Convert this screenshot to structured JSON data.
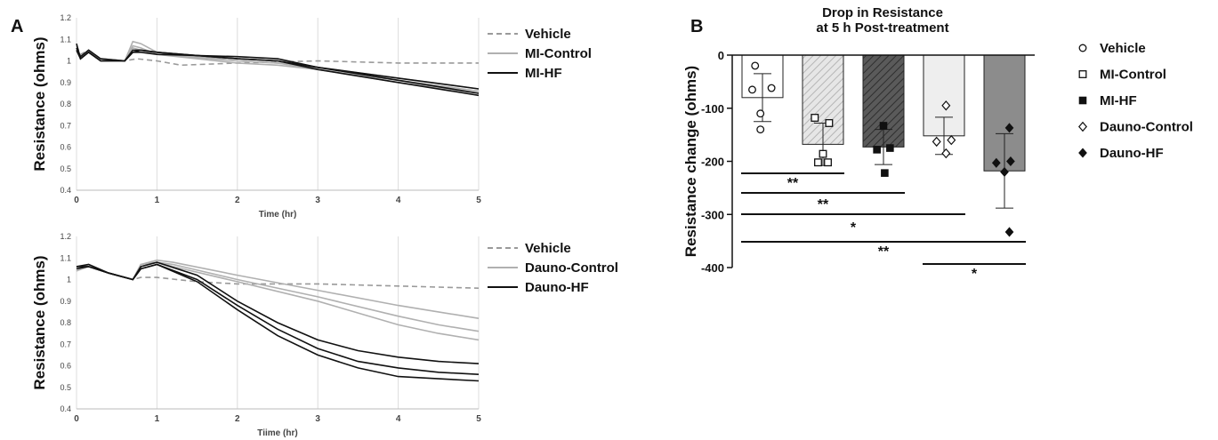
{
  "panels": {
    "a": "A",
    "b": "B"
  },
  "chart_data": [
    {
      "id": "a_top",
      "type": "line",
      "xlabel": "Time (hr)",
      "ylabel": "Resistance (ohms)",
      "xlim": [
        0,
        5
      ],
      "ylim": [
        0.4,
        1.2
      ],
      "xticks": [
        0,
        1,
        2,
        3,
        4,
        5
      ],
      "yticks": [
        0.4,
        0.5,
        0.6,
        0.7,
        0.8,
        0.9,
        1,
        1.1,
        1.2
      ],
      "grid": "vertical",
      "legend": [
        {
          "name": "Vehicle",
          "style": "dashed",
          "color": "#9a9a9a"
        },
        {
          "name": "MI-Control",
          "style": "solid",
          "color": "#b0b0b0"
        },
        {
          "name": "MI-HF",
          "style": "solid",
          "color": "#111111"
        }
      ],
      "series": [
        {
          "group": "Vehicle",
          "color": "#9a9a9a",
          "dashed": true,
          "x": [
            0,
            0.05,
            0.15,
            0.3,
            0.6,
            0.75,
            1.0,
            1.3,
            2.0,
            3.0,
            4.0,
            5.0
          ],
          "y": [
            1.07,
            1.03,
            1.05,
            1.01,
            1.0,
            1.01,
            1.0,
            0.98,
            0.99,
            1.0,
            0.99,
            0.99
          ]
        },
        {
          "group": "MI-Control",
          "color": "#b0b0b0",
          "dashed": false,
          "x": [
            0,
            0.05,
            0.15,
            0.3,
            0.6,
            0.7,
            0.8,
            1.0,
            2.0,
            2.5,
            3.0,
            4.0,
            5.0
          ],
          "y": [
            1.07,
            1.02,
            1.05,
            1.01,
            1.0,
            1.09,
            1.08,
            1.04,
            1.0,
            0.99,
            0.97,
            0.92,
            0.87
          ]
        },
        {
          "group": "MI-Control",
          "color": "#b0b0b0",
          "dashed": false,
          "x": [
            0,
            0.05,
            0.15,
            0.3,
            0.6,
            0.7,
            0.8,
            1.0,
            2.0,
            2.5,
            3.0,
            4.0,
            5.0
          ],
          "y": [
            1.06,
            1.02,
            1.04,
            1.01,
            1.0,
            1.07,
            1.06,
            1.03,
            0.99,
            0.98,
            0.96,
            0.91,
            0.86
          ]
        },
        {
          "group": "MI-Control",
          "color": "#b0b0b0",
          "dashed": false,
          "x": [
            0,
            0.05,
            0.15,
            0.3,
            0.6,
            0.7,
            0.8,
            1.0,
            2.0,
            2.5,
            3.0,
            4.0,
            5.0
          ],
          "y": [
            1.05,
            1.01,
            1.04,
            1.0,
            1.0,
            1.06,
            1.05,
            1.03,
            1.0,
            0.99,
            0.96,
            0.9,
            0.85
          ]
        },
        {
          "group": "MI-HF",
          "color": "#111111",
          "dashed": false,
          "x": [
            0,
            0.05,
            0.15,
            0.3,
            0.6,
            0.7,
            0.8,
            1.0,
            2.0,
            2.5,
            3.0,
            4.0,
            5.0
          ],
          "y": [
            1.08,
            1.01,
            1.04,
            1.0,
            1.0,
            1.04,
            1.05,
            1.04,
            1.01,
            1.0,
            0.96,
            0.9,
            0.84
          ]
        },
        {
          "group": "MI-HF",
          "color": "#111111",
          "dashed": false,
          "x": [
            0,
            0.05,
            0.15,
            0.3,
            0.6,
            0.7,
            0.8,
            1.0,
            2.0,
            2.5,
            3.0,
            4.0,
            5.0
          ],
          "y": [
            1.06,
            1.02,
            1.05,
            1.01,
            1.0,
            1.04,
            1.04,
            1.03,
            1.02,
            1.01,
            0.97,
            0.91,
            0.85
          ]
        },
        {
          "group": "MI-HF",
          "color": "#111111",
          "dashed": false,
          "x": [
            0,
            0.05,
            0.15,
            0.3,
            0.6,
            0.7,
            0.8,
            1.0,
            2.0,
            2.5,
            3.0,
            4.0,
            5.0
          ],
          "y": [
            1.05,
            1.01,
            1.04,
            1.0,
            1.0,
            1.05,
            1.05,
            1.04,
            1.01,
            1.0,
            0.97,
            0.92,
            0.87
          ]
        }
      ]
    },
    {
      "id": "a_bottom",
      "type": "line",
      "xlabel": "Tiime (hr)",
      "ylabel": "Resistance (ohms)",
      "xlim": [
        0,
        5
      ],
      "ylim": [
        0.4,
        1.2
      ],
      "xticks": [
        0,
        1,
        2,
        3,
        4,
        5
      ],
      "yticks": [
        0.4,
        0.5,
        0.6,
        0.7,
        0.8,
        0.9,
        1,
        1.1,
        1.2
      ],
      "grid": "vertical",
      "legend": [
        {
          "name": "Vehicle",
          "style": "dashed",
          "color": "#9a9a9a"
        },
        {
          "name": "Dauno-Control",
          "style": "solid",
          "color": "#b0b0b0"
        },
        {
          "name": "Dauno-HF",
          "style": "solid",
          "color": "#111111"
        }
      ],
      "series": [
        {
          "group": "Vehicle",
          "color": "#9a9a9a",
          "dashed": true,
          "x": [
            0,
            0.15,
            0.4,
            0.7,
            0.8,
            1.0,
            1.5,
            2.0,
            3.0,
            4.0,
            5.0
          ],
          "y": [
            1.05,
            1.06,
            1.03,
            1.0,
            1.01,
            1.01,
            0.99,
            0.98,
            0.98,
            0.97,
            0.96
          ]
        },
        {
          "group": "Dauno-Control",
          "color": "#b0b0b0",
          "dashed": false,
          "x": [
            0,
            0.15,
            0.4,
            0.7,
            0.8,
            1.0,
            1.2,
            2.0,
            3.0,
            4.0,
            4.5,
            5.0
          ],
          "y": [
            1.04,
            1.07,
            1.03,
            1.0,
            1.07,
            1.09,
            1.08,
            1.02,
            0.95,
            0.88,
            0.85,
            0.82
          ]
        },
        {
          "group": "Dauno-Control",
          "color": "#b0b0b0",
          "dashed": false,
          "x": [
            0,
            0.15,
            0.4,
            0.7,
            0.8,
            1.0,
            1.2,
            2.0,
            3.0,
            4.0,
            4.5,
            5.0
          ],
          "y": [
            1.05,
            1.06,
            1.03,
            1.0,
            1.06,
            1.08,
            1.07,
            1.0,
            0.92,
            0.83,
            0.79,
            0.76
          ]
        },
        {
          "group": "Dauno-Control",
          "color": "#b0b0b0",
          "dashed": false,
          "x": [
            0,
            0.15,
            0.4,
            0.7,
            0.8,
            1.0,
            1.2,
            2.0,
            3.0,
            4.0,
            4.5,
            5.0
          ],
          "y": [
            1.04,
            1.06,
            1.03,
            1.0,
            1.07,
            1.08,
            1.06,
            0.99,
            0.9,
            0.79,
            0.75,
            0.72
          ]
        },
        {
          "group": "Dauno-HF",
          "color": "#111111",
          "dashed": false,
          "x": [
            0,
            0.15,
            0.4,
            0.7,
            0.8,
            1.0,
            1.5,
            2.0,
            2.5,
            3.0,
            3.5,
            4.0,
            4.5,
            5.0
          ],
          "y": [
            1.06,
            1.07,
            1.03,
            1.0,
            1.06,
            1.08,
            1.02,
            0.9,
            0.8,
            0.72,
            0.67,
            0.64,
            0.62,
            0.61
          ]
        },
        {
          "group": "Dauno-HF",
          "color": "#111111",
          "dashed": false,
          "x": [
            0,
            0.15,
            0.4,
            0.7,
            0.8,
            1.0,
            1.5,
            2.0,
            2.5,
            3.0,
            3.5,
            4.0,
            4.5,
            5.0
          ],
          "y": [
            1.05,
            1.06,
            1.03,
            1.0,
            1.05,
            1.07,
            1.0,
            0.88,
            0.77,
            0.68,
            0.62,
            0.59,
            0.57,
            0.56
          ]
        },
        {
          "group": "Dauno-HF",
          "color": "#111111",
          "dashed": false,
          "x": [
            0,
            0.15,
            0.4,
            0.7,
            0.8,
            1.0,
            1.5,
            2.0,
            2.5,
            3.0,
            3.5,
            4.0,
            4.5,
            5.0
          ],
          "y": [
            1.06,
            1.06,
            1.03,
            1.0,
            1.05,
            1.07,
            0.99,
            0.86,
            0.74,
            0.65,
            0.59,
            0.55,
            0.54,
            0.53
          ]
        }
      ]
    },
    {
      "id": "b",
      "type": "bar",
      "title": "Drop in Resistance\nat 5 h Post-treatment",
      "title_lines": [
        "Drop in Resistance",
        "at 5 h Post-treatment"
      ],
      "ylabel": "Resistance change (ohms)",
      "ylim": [
        -400,
        0
      ],
      "yticks": [
        0,
        -100,
        -200,
        -300,
        -400
      ],
      "categories": [
        "Vehicle",
        "MI-Control",
        "MI-HF",
        "Dauno-Control",
        "Dauno-HF"
      ],
      "values": [
        -80,
        -168,
        -173,
        -152,
        -218
      ],
      "error": [
        45,
        40,
        33,
        35,
        70
      ],
      "bar_fill": [
        "#ffffff",
        "#e6e6e6",
        "#555555",
        "#eeeeee",
        "#8c8c8c"
      ],
      "bar_hatch": [
        false,
        true,
        true,
        false,
        false
      ],
      "marker": [
        "circle-open",
        "square-open",
        "square-filled",
        "diamond-open",
        "diamond-filled"
      ],
      "points": [
        [
          {
            "dx": -0.18,
            "y": -20
          },
          {
            "dx": -0.25,
            "y": -65
          },
          {
            "dx": 0.22,
            "y": -62
          },
          {
            "dx": -0.05,
            "y": -110
          },
          {
            "dx": -0.05,
            "y": -140
          }
        ],
        [
          {
            "dx": -0.2,
            "y": -118
          },
          {
            "dx": 0.15,
            "y": -128
          },
          {
            "dx": 0.0,
            "y": -186
          },
          {
            "dx": -0.12,
            "y": -202
          },
          {
            "dx": 0.12,
            "y": -202
          }
        ],
        [
          {
            "dx": 0.0,
            "y": -133
          },
          {
            "dx": -0.16,
            "y": -178
          },
          {
            "dx": 0.16,
            "y": -175
          },
          {
            "dx": 0.03,
            "y": -222
          }
        ],
        [
          {
            "dx": 0.05,
            "y": -95
          },
          {
            "dx": -0.18,
            "y": -163
          },
          {
            "dx": 0.18,
            "y": -160
          },
          {
            "dx": 0.05,
            "y": -185
          }
        ],
        [
          {
            "dx": 0.12,
            "y": -137
          },
          {
            "dx": -0.2,
            "y": -203
          },
          {
            "dx": 0.15,
            "y": -200
          },
          {
            "dx": 0.0,
            "y": -220
          },
          {
            "dx": 0.12,
            "y": -333
          }
        ]
      ],
      "significance": [
        {
          "from": "Vehicle",
          "to": "MI-Control",
          "label": "**"
        },
        {
          "from": "Vehicle",
          "to": "MI-HF",
          "label": "**"
        },
        {
          "from": "Vehicle",
          "to": "Dauno-Control",
          "label": "*"
        },
        {
          "from": "Vehicle",
          "to": "Dauno-HF",
          "label": "**"
        },
        {
          "from": "Dauno-Control",
          "to": "Dauno-HF",
          "label": "*"
        }
      ],
      "legend": [
        {
          "name": "Vehicle",
          "marker": "circle-open"
        },
        {
          "name": "MI-Control",
          "marker": "square-open"
        },
        {
          "name": "MI-HF",
          "marker": "square-filled"
        },
        {
          "name": "Dauno-Control",
          "marker": "diamond-open"
        },
        {
          "name": "Dauno-HF",
          "marker": "diamond-filled"
        }
      ]
    }
  ]
}
